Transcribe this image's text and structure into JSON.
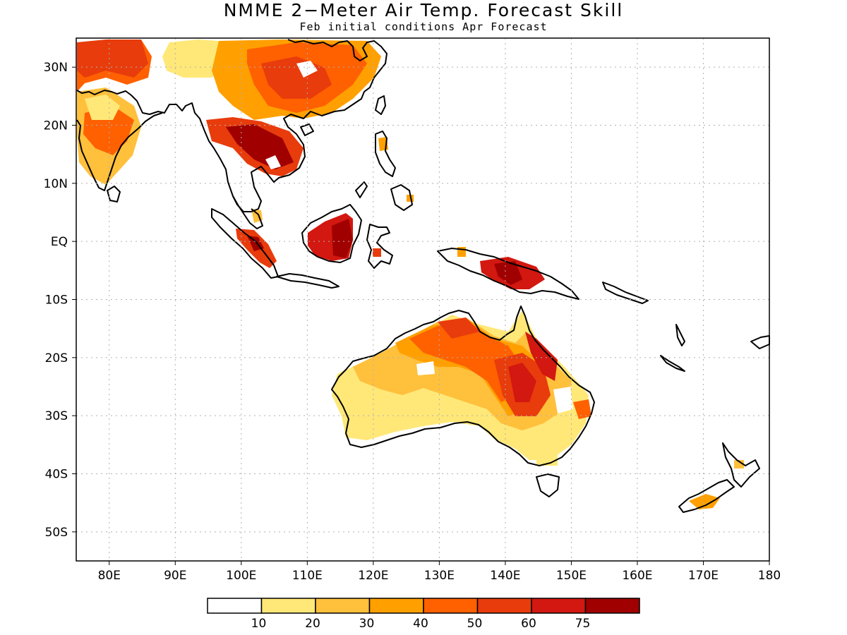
{
  "title": "NMME 2−Meter Air Temp. Forecast Skill",
  "subtitle": "Feb initial conditions  Apr Forecast",
  "map": {
    "lon_range": [
      75,
      180
    ],
    "lat_range": [
      -55,
      35
    ],
    "lat_labels": [
      "30N",
      "20N",
      "10N",
      "EQ",
      "10S",
      "20S",
      "30S",
      "40S",
      "50S"
    ],
    "lon_labels": [
      "80E",
      "90E",
      "100E",
      "110E",
      "120E",
      "130E",
      "140E",
      "150E",
      "160E",
      "170E",
      "180"
    ],
    "grid": "dotted"
  },
  "colorbar": {
    "tick_labels": [
      "10",
      "20",
      "30",
      "40",
      "50",
      "60",
      "75"
    ],
    "colors": [
      "#ffffff",
      "#ffe878",
      "#ffc03c",
      "#ffa000",
      "#ff6000",
      "#e83c0c",
      "#d21810",
      "#a00000"
    ]
  }
}
